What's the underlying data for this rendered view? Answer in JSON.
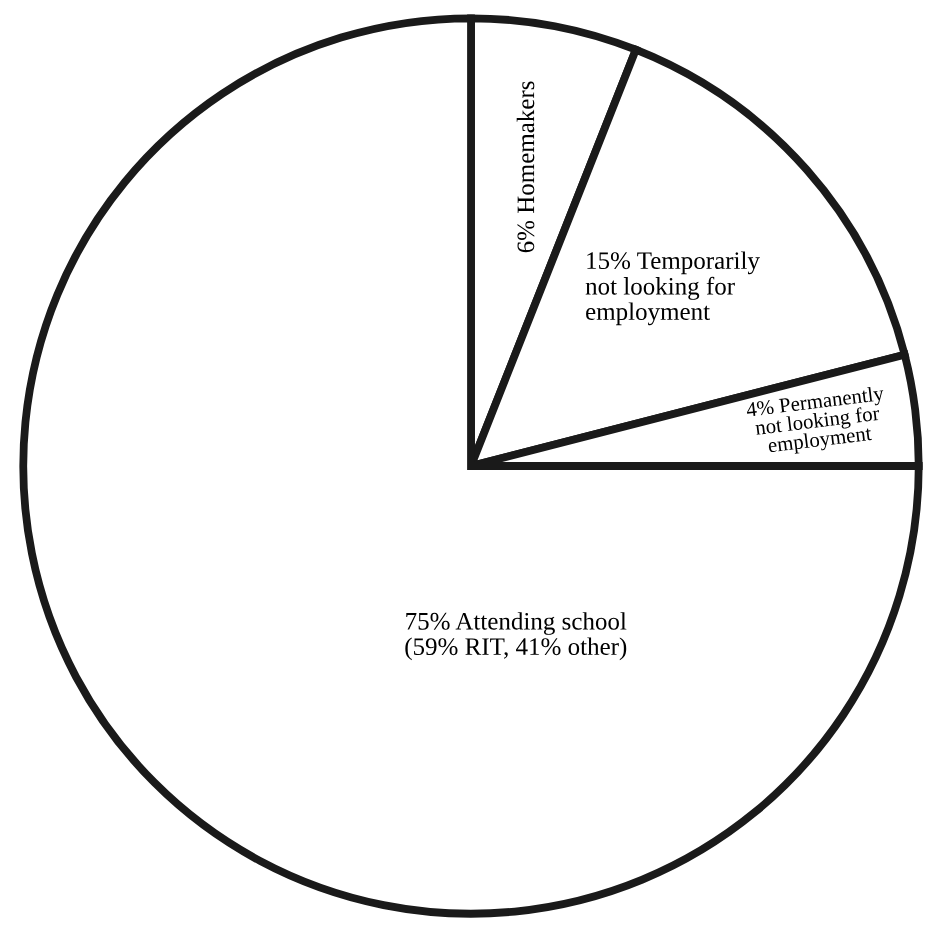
{
  "chart_data": {
    "type": "pie",
    "categories": [
      "Homemakers",
      "Temporarily\nnot looking for\nemployment",
      "Permanently\nnot looking for\nemployment",
      "Attending school\n(59% RIT, 41% other)"
    ],
    "values": [
      6,
      15,
      4,
      75
    ],
    "value_labels": [
      "6%",
      "15%",
      "4%",
      "75%"
    ],
    "colors": [
      "#ffffff",
      "#ffffff",
      "#ffffff",
      "#ffffff"
    ]
  }
}
